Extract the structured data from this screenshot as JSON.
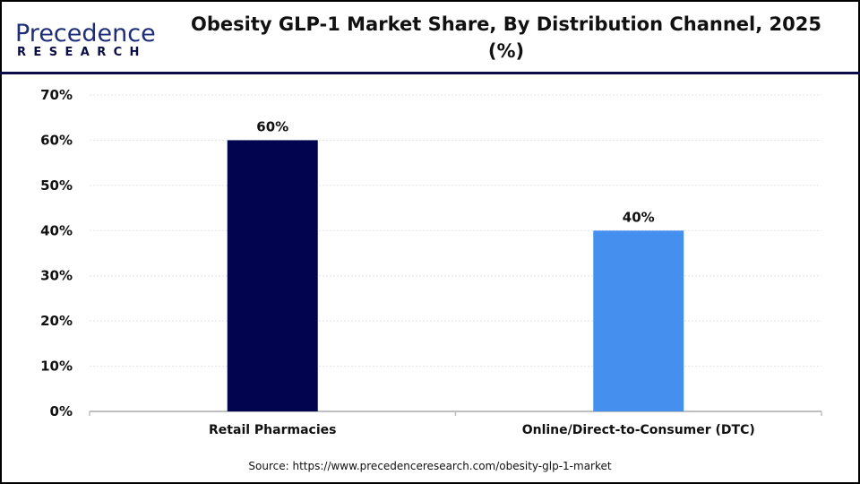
{
  "brand": {
    "logo_line1": "Precedence",
    "logo_line2": "RESEARCH"
  },
  "chart_data": {
    "type": "bar",
    "title": "Obesity GLP-1 Market Share, By Distribution Channel, 2025 (%)",
    "categories": [
      "Retail Pharmacies",
      "Online/Direct-to-Consumer (DTC)"
    ],
    "values": [
      60,
      40
    ],
    "data_labels": [
      "60%",
      "40%"
    ],
    "colors": [
      "#02044f",
      "#4590ee"
    ],
    "ylim": [
      0,
      70
    ],
    "yticks": [
      "0%",
      "10%",
      "20%",
      "30%",
      "40%",
      "50%",
      "60%",
      "70%"
    ],
    "grid": true,
    "xlabel": "",
    "ylabel": ""
  },
  "source": "Source: https://www.precedenceresearch.com/obesity-glp-1-market"
}
